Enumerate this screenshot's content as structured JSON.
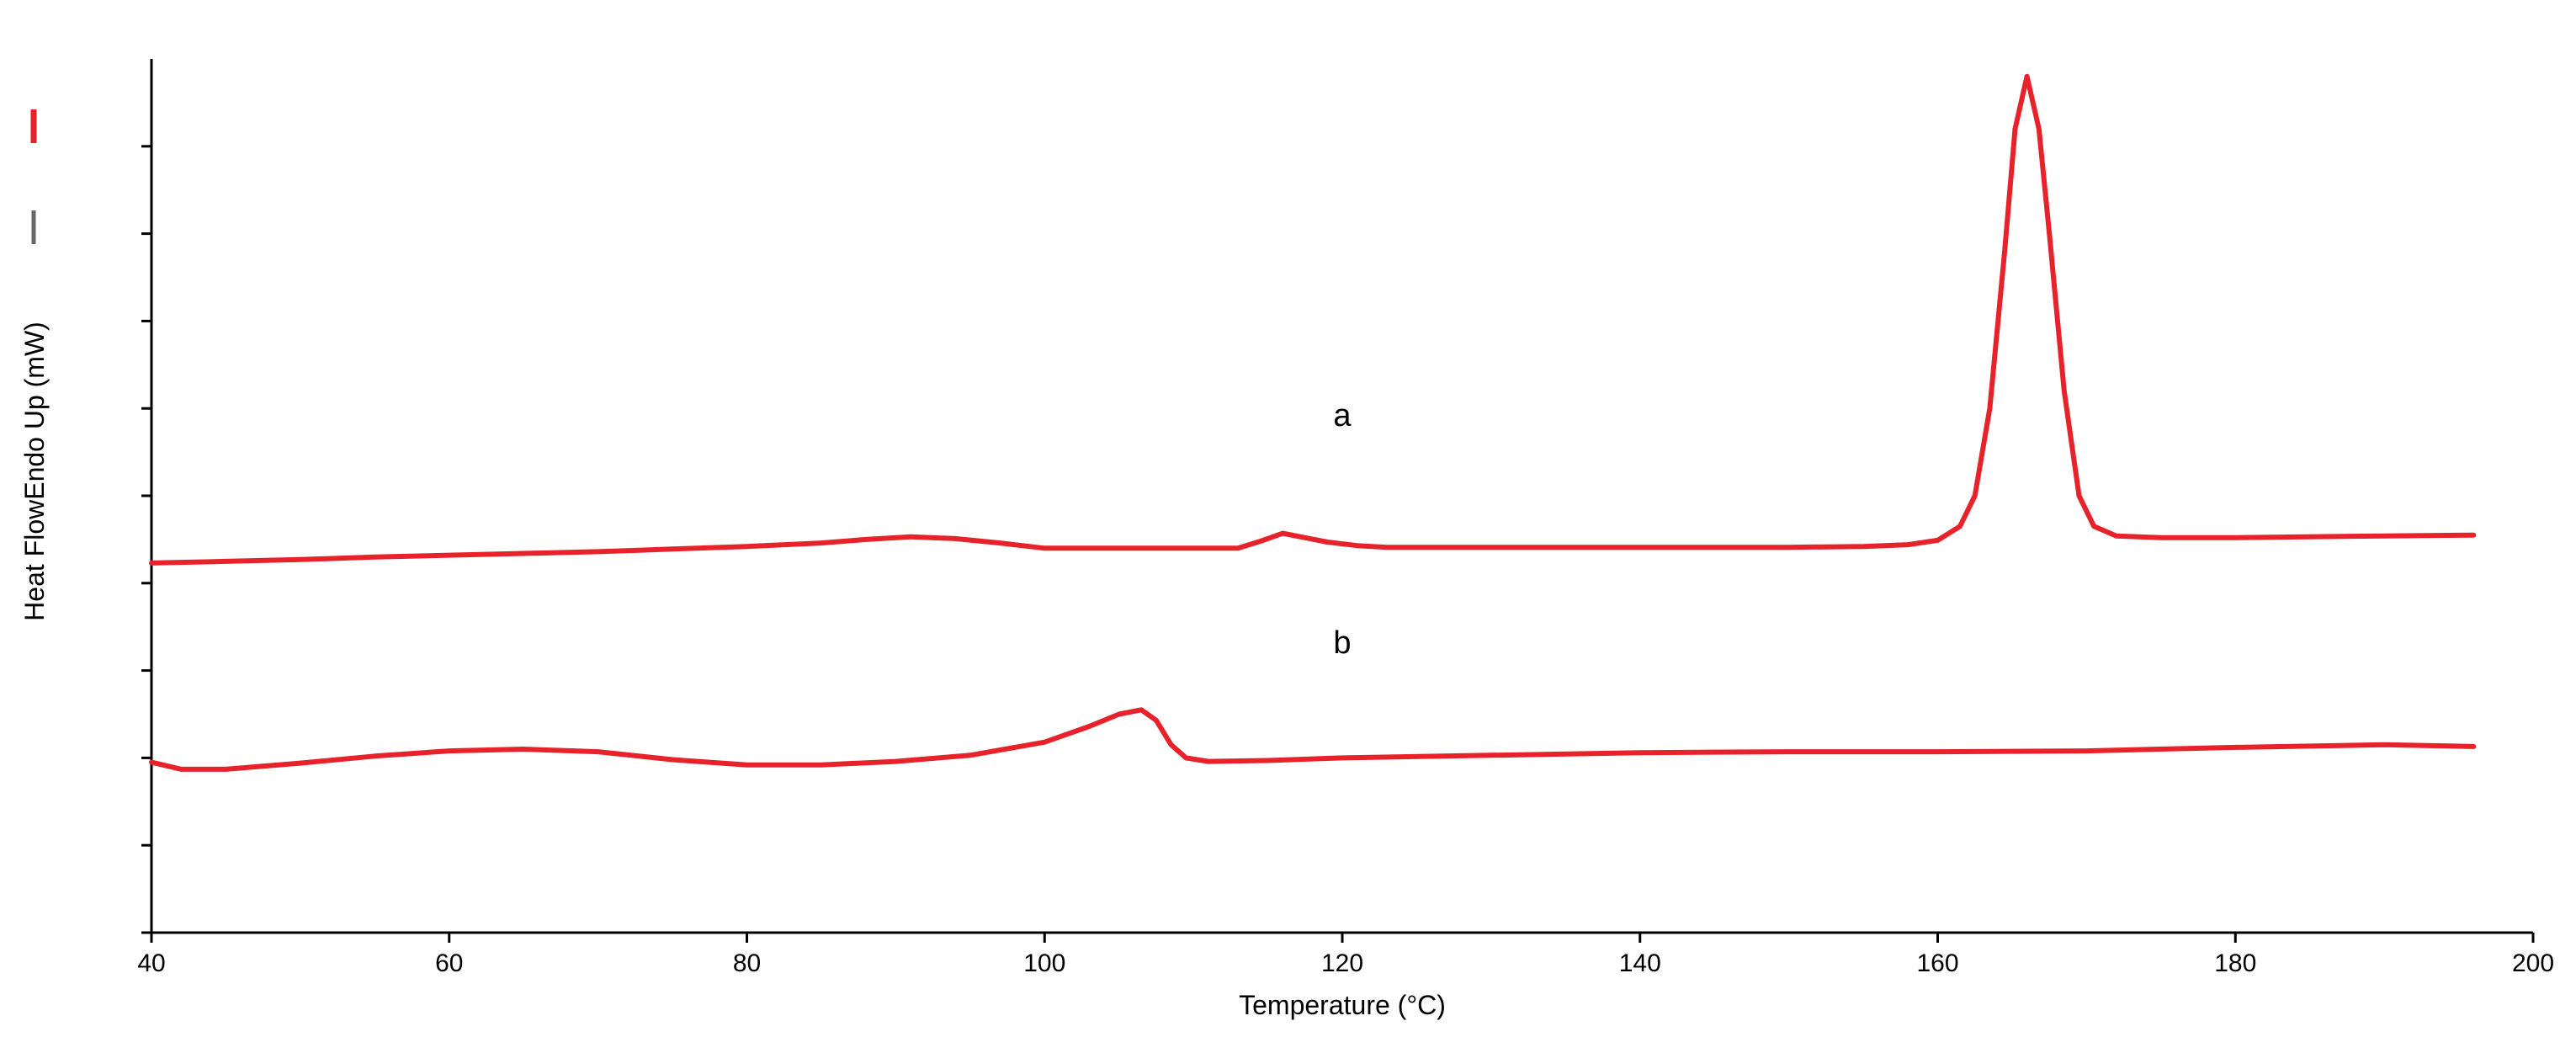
{
  "chart_data": {
    "type": "line",
    "title": "",
    "xlabel": "Temperature (°C)",
    "ylabel": "Heat FlowEndo Up (mW)",
    "xlim": [
      40,
      200
    ],
    "xticks": [
      40,
      60,
      80,
      100,
      120,
      140,
      160,
      180,
      200
    ],
    "ylim": [
      0,
      100
    ],
    "yticks": [
      0,
      10,
      20,
      30,
      40,
      50,
      60,
      70,
      80,
      90
    ],
    "grid": false,
    "legend": "left-vertical",
    "legend_colors": [
      "#e8222a",
      "#666666"
    ],
    "series": [
      {
        "label": "a",
        "label_at": [
          120,
          58
        ],
        "color": "#e8222a",
        "x": [
          40,
          45,
          50,
          55,
          60,
          65,
          70,
          75,
          80,
          85,
          88,
          91,
          94,
          97,
          100,
          105,
          110,
          113,
          114.5,
          116,
          117.5,
          119,
          121,
          123,
          130,
          140,
          150,
          155,
          158,
          160,
          161.5,
          162.5,
          163.5,
          164.5,
          165.2,
          166,
          166.8,
          167.5,
          168.5,
          169.5,
          170.5,
          172,
          175,
          180,
          190,
          196
        ],
        "y": [
          42.3,
          42.5,
          42.7,
          43,
          43.2,
          43.4,
          43.6,
          43.9,
          44.2,
          44.6,
          45,
          45.3,
          45.1,
          44.6,
          44,
          44,
          44,
          44,
          44.8,
          45.7,
          45.2,
          44.7,
          44.3,
          44.1,
          44.1,
          44.1,
          44.1,
          44.2,
          44.4,
          44.9,
          46.5,
          50,
          60,
          78,
          92,
          98,
          92,
          80,
          62,
          50,
          46.5,
          45.4,
          45.2,
          45.2,
          45.4,
          45.5
        ]
      },
      {
        "label": "b",
        "label_at": [
          120,
          32
        ],
        "color": "#e8222a",
        "x": [
          40,
          42,
          45,
          50,
          55,
          60,
          65,
          70,
          75,
          80,
          85,
          90,
          95,
          100,
          103,
          105,
          106.5,
          107.5,
          108.5,
          109.5,
          111,
          115,
          120,
          130,
          140,
          150,
          160,
          170,
          180,
          190,
          196
        ],
        "y": [
          19.5,
          18.7,
          18.7,
          19.4,
          20.2,
          20.8,
          21,
          20.7,
          19.8,
          19.2,
          19.2,
          19.6,
          20.3,
          21.8,
          23.6,
          25,
          25.5,
          24.3,
          21.5,
          20,
          19.6,
          19.7,
          20,
          20.3,
          20.6,
          20.7,
          20.7,
          20.8,
          21.2,
          21.5,
          21.3
        ]
      }
    ]
  }
}
